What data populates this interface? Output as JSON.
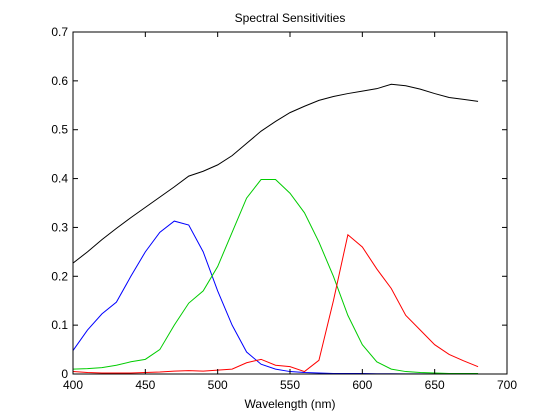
{
  "chart_data": {
    "type": "line",
    "title": "Spectral Sensitivities",
    "xlabel": "Wavelength (nm)",
    "ylabel": "",
    "xlim": [
      400,
      700
    ],
    "ylim": [
      0,
      0.7
    ],
    "xticks": [
      400,
      450,
      500,
      550,
      600,
      650,
      700
    ],
    "yticks": [
      0,
      0.1,
      0.2,
      0.3,
      0.4,
      0.5,
      0.6,
      0.7
    ],
    "grid": false,
    "legend": "none",
    "x": [
      400,
      410,
      420,
      430,
      440,
      450,
      460,
      470,
      480,
      490,
      500,
      510,
      520,
      530,
      540,
      550,
      560,
      570,
      580,
      590,
      600,
      610,
      620,
      630,
      640,
      650,
      660,
      670,
      680
    ],
    "series": [
      {
        "color": "#000000",
        "values": [
          0.227,
          0.25,
          0.275,
          0.298,
          0.32,
          0.341,
          0.362,
          0.383,
          0.405,
          0.415,
          0.428,
          0.447,
          0.472,
          0.497,
          0.517,
          0.535,
          0.548,
          0.56,
          0.568,
          0.574,
          0.579,
          0.584,
          0.593,
          0.59,
          0.583,
          0.574,
          0.566,
          0.562,
          0.558
        ]
      },
      {
        "color": "#0000ff",
        "values": [
          0.048,
          0.09,
          0.123,
          0.147,
          0.2,
          0.25,
          0.29,
          0.313,
          0.305,
          0.25,
          0.17,
          0.1,
          0.045,
          0.02,
          0.01,
          0.005,
          0.003,
          0.002,
          0.001,
          0.001,
          0.001,
          0.0005,
          0.0005,
          0.0003,
          0.0003,
          0.0002,
          0.0002,
          0.0001,
          0.0001
        ]
      },
      {
        "color": "#00cc00",
        "values": [
          0.01,
          0.011,
          0.013,
          0.018,
          0.025,
          0.03,
          0.05,
          0.1,
          0.145,
          0.17,
          0.22,
          0.29,
          0.36,
          0.398,
          0.398,
          0.37,
          0.33,
          0.27,
          0.2,
          0.12,
          0.06,
          0.025,
          0.01,
          0.005,
          0.003,
          0.002,
          0.001,
          0.001,
          0.001
        ]
      },
      {
        "color": "#ff0000",
        "values": [
          0.005,
          0.003,
          0.002,
          0.002,
          0.002,
          0.003,
          0.004,
          0.006,
          0.007,
          0.006,
          0.008,
          0.01,
          0.023,
          0.03,
          0.018,
          0.015,
          0.005,
          0.028,
          0.15,
          0.285,
          0.26,
          0.215,
          0.175,
          0.12,
          0.09,
          0.06,
          0.04,
          0.027,
          0.015
        ]
      }
    ]
  }
}
